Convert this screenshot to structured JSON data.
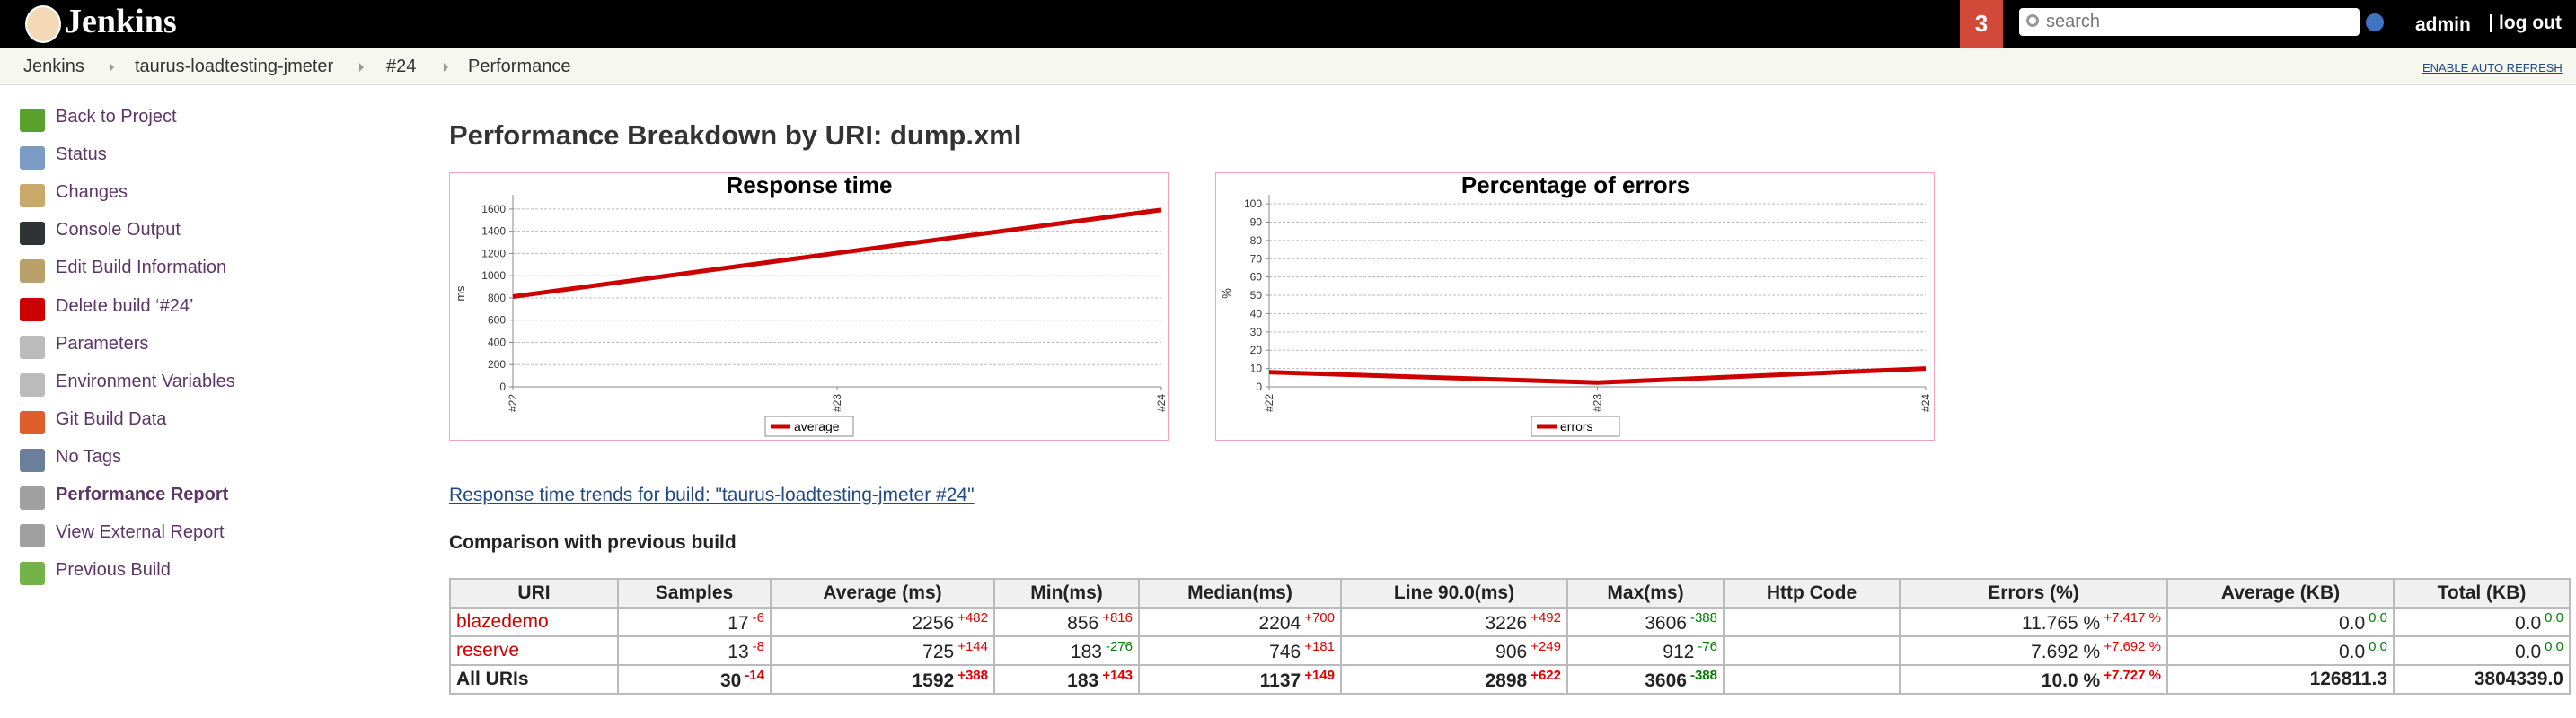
{
  "header": {
    "logo": "Jenkins",
    "badge": "3",
    "search_placeholder": "search",
    "user": "admin",
    "logout": "log out"
  },
  "breadcrumbs": [
    "Jenkins",
    "taurus-loadtesting-jmeter",
    "#24",
    "Performance"
  ],
  "auto_refresh": "ENABLE AUTO REFRESH",
  "sidebar": [
    {
      "label": "Back to Project"
    },
    {
      "label": "Status"
    },
    {
      "label": "Changes"
    },
    {
      "label": "Console Output"
    },
    {
      "label": "Edit Build Information"
    },
    {
      "label": "Delete build ‘#24’"
    },
    {
      "label": "Parameters"
    },
    {
      "label": "Environment Variables"
    },
    {
      "label": "Git Build Data"
    },
    {
      "label": "No Tags"
    },
    {
      "label": "Performance Report",
      "active": true
    },
    {
      "label": "View External Report"
    },
    {
      "label": "Previous Build"
    }
  ],
  "title": "Performance Breakdown by URI: dump.xml",
  "chart_data": [
    {
      "type": "line",
      "title": "Response time",
      "ylabel": "ms",
      "categories": [
        "#22",
        "#23",
        "#24"
      ],
      "series": [
        {
          "name": "average",
          "color": "#cc0000",
          "values": [
            812,
            1204,
            1592
          ]
        }
      ],
      "ylim": [
        0,
        1680
      ],
      "yticks": [
        0,
        200,
        400,
        600,
        800,
        1000,
        1200,
        1400,
        1600
      ],
      "grid": true
    },
    {
      "type": "line",
      "title": "Percentage of errors",
      "ylabel": "%",
      "categories": [
        "#22",
        "#23",
        "#24"
      ],
      "series": [
        {
          "name": "errors",
          "color": "#cc0000",
          "values": [
            8,
            2.3,
            10
          ]
        }
      ],
      "ylim": [
        0,
        102
      ],
      "yticks": [
        0,
        10,
        20,
        30,
        40,
        50,
        60,
        70,
        80,
        90,
        100
      ],
      "grid": true
    }
  ],
  "trend_link": "Response time trends for build: \"taurus-loadtesting-jmeter #24\"",
  "comparison_heading": "Comparison with previous build",
  "table": {
    "headers": [
      "URI",
      "Samples",
      "Average (ms)",
      "Min(ms)",
      "Median(ms)",
      "Line 90.0(ms)",
      "Max(ms)",
      "Http Code",
      "Errors (%)",
      "Average (KB)",
      "Total (KB)"
    ],
    "rows": [
      {
        "uri": "blazedemo",
        "cells": [
          {
            "value": "17",
            "delta": "-6",
            "delta_color": "#e00000"
          },
          {
            "value": "2256",
            "delta": "+482",
            "delta_color": "#e00000"
          },
          {
            "value": "856",
            "delta": "+816",
            "delta_color": "#e00000"
          },
          {
            "value": "2204",
            "delta": "+700",
            "delta_color": "#e00000"
          },
          {
            "value": "3226",
            "delta": "+492",
            "delta_color": "#e00000"
          },
          {
            "value": "3606",
            "delta": "-388",
            "delta_color": "#008000"
          },
          null,
          {
            "value": "11.765 %",
            "delta": "+7.417 %",
            "delta_color": "#e00000"
          },
          {
            "value": "0.0",
            "delta": "0.0",
            "delta_color": "#008000"
          },
          {
            "value": "0.0",
            "delta": "0.0",
            "delta_color": "#008000"
          }
        ]
      },
      {
        "uri": "reserve",
        "cells": [
          {
            "value": "13",
            "delta": "-8",
            "delta_color": "#e00000"
          },
          {
            "value": "725",
            "delta": "+144",
            "delta_color": "#e00000"
          },
          {
            "value": "183",
            "delta": "-276",
            "delta_color": "#008000"
          },
          {
            "value": "746",
            "delta": "+181",
            "delta_color": "#e00000"
          },
          {
            "value": "906",
            "delta": "+249",
            "delta_color": "#e00000"
          },
          {
            "value": "912",
            "delta": "-76",
            "delta_color": "#008000"
          },
          null,
          {
            "value": "7.692 %",
            "delta": "+7.692 %",
            "delta_color": "#e00000"
          },
          {
            "value": "0.0",
            "delta": "0.0",
            "delta_color": "#008000"
          },
          {
            "value": "0.0",
            "delta": "0.0",
            "delta_color": "#008000"
          }
        ]
      },
      {
        "uri": "All URIs",
        "total": true,
        "cells": [
          {
            "value": "30",
            "delta": "-14",
            "delta_color": "#e00000"
          },
          {
            "value": "1592",
            "delta": "+388",
            "delta_color": "#e00000"
          },
          {
            "value": "183",
            "delta": "+143",
            "delta_color": "#e00000"
          },
          {
            "value": "1137",
            "delta": "+149",
            "delta_color": "#e00000"
          },
          {
            "value": "2898",
            "delta": "+622",
            "delta_color": "#e00000"
          },
          {
            "value": "3606",
            "delta": "-388",
            "delta_color": "#008000"
          },
          null,
          {
            "value": "10.0 %",
            "delta": "+7.727 %",
            "delta_color": "#e00000"
          },
          {
            "value": "126811.3"
          },
          {
            "value": "3804339.0"
          }
        ]
      }
    ]
  }
}
